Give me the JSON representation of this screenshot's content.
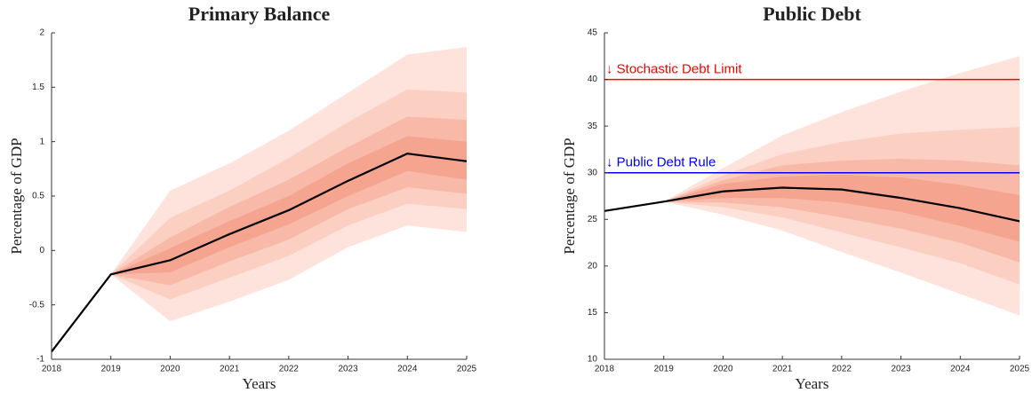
{
  "chart_data": [
    {
      "type": "fan",
      "title": "Primary Balance",
      "x_label": "Years",
      "y_label": "Percentage of GDP",
      "x": [
        2018,
        2019,
        2020,
        2021,
        2022,
        2023,
        2024,
        2025
      ],
      "xlim": [
        2018,
        2025
      ],
      "xticks": [
        2018,
        2019,
        2020,
        2021,
        2022,
        2023,
        2024,
        2025
      ],
      "ylim": [
        -1,
        2
      ],
      "yticks": [
        -1,
        -0.5,
        0,
        0.5,
        1,
        1.5,
        2
      ],
      "bands": [
        {
          "color": "#fde3dc",
          "lower": [
            null,
            -0.22,
            -0.65,
            -0.47,
            -0.27,
            0.03,
            0.23,
            0.17
          ],
          "upper": [
            null,
            -0.22,
            0.55,
            0.8,
            1.1,
            1.45,
            1.8,
            1.87
          ]
        },
        {
          "color": "#fbcfc2",
          "lower": [
            null,
            -0.22,
            -0.45,
            -0.25,
            -0.05,
            0.23,
            0.43,
            0.38
          ],
          "upper": [
            null,
            -0.22,
            0.3,
            0.55,
            0.85,
            1.18,
            1.48,
            1.45
          ]
        },
        {
          "color": "#f8b9a8",
          "lower": [
            null,
            -0.22,
            -0.32,
            -0.1,
            0.1,
            0.38,
            0.58,
            0.52
          ],
          "upper": [
            null,
            -0.22,
            0.12,
            0.4,
            0.65,
            0.95,
            1.23,
            1.2
          ]
        },
        {
          "color": "#f4a48f",
          "lower": [
            null,
            -0.22,
            -0.2,
            0.03,
            0.24,
            0.5,
            0.73,
            0.65
          ],
          "upper": [
            null,
            -0.22,
            0.02,
            0.27,
            0.5,
            0.8,
            1.05,
            1.0
          ]
        }
      ],
      "median": {
        "color": "#000000",
        "values": [
          -0.93,
          -0.22,
          -0.09,
          0.15,
          0.37,
          0.64,
          0.89,
          0.82
        ]
      },
      "reference_lines": []
    },
    {
      "type": "fan",
      "title": "Public Debt",
      "x_label": "Years",
      "y_label": "Percentage of GDP",
      "x": [
        2018,
        2019,
        2020,
        2021,
        2022,
        2023,
        2024,
        2025
      ],
      "xlim": [
        2018,
        2025
      ],
      "xticks": [
        2018,
        2019,
        2020,
        2021,
        2022,
        2023,
        2024,
        2025
      ],
      "ylim": [
        10,
        45
      ],
      "yticks": [
        10,
        15,
        20,
        25,
        30,
        35,
        40,
        45
      ],
      "bands": [
        {
          "color": "#fde3dc",
          "lower": [
            null,
            26.9,
            25.5,
            23.8,
            21.5,
            19.3,
            17.0,
            14.7
          ],
          "upper": [
            null,
            26.9,
            30.5,
            34.0,
            36.5,
            38.7,
            40.7,
            42.5
          ]
        },
        {
          "color": "#fbcfc2",
          "lower": [
            null,
            26.9,
            26.3,
            25.2,
            23.6,
            22.0,
            20.3,
            18.0
          ],
          "upper": [
            null,
            26.9,
            29.7,
            32.0,
            33.3,
            34.2,
            34.6,
            34.9
          ]
        },
        {
          "color": "#f8b9a8",
          "lower": [
            null,
            26.9,
            26.8,
            26.3,
            25.2,
            24.0,
            22.5,
            20.4
          ],
          "upper": [
            null,
            26.9,
            29.2,
            30.8,
            31.3,
            31.5,
            31.3,
            30.8
          ]
        },
        {
          "color": "#f4a48f",
          "lower": [
            null,
            26.9,
            27.3,
            27.3,
            26.8,
            25.8,
            24.3,
            22.6
          ],
          "upper": [
            null,
            26.9,
            28.8,
            29.6,
            29.8,
            29.5,
            28.7,
            27.6
          ]
        }
      ],
      "median": {
        "color": "#000000",
        "values": [
          25.9,
          26.9,
          28.0,
          28.4,
          28.2,
          27.3,
          26.2,
          24.8
        ]
      },
      "reference_lines": [
        {
          "value": 40,
          "label": "↓ Stochastic Debt Limit",
          "color": "#ff0000"
        },
        {
          "value": 30,
          "label": "↓ Public Debt Rule",
          "color": "#0000ff"
        }
      ]
    }
  ]
}
